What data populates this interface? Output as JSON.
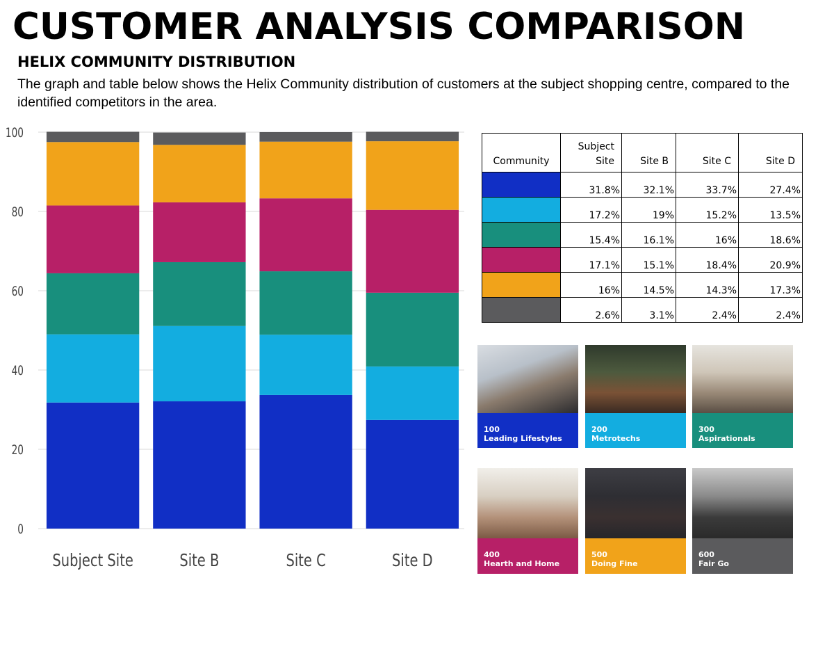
{
  "header": {
    "title": "CUSTOMER ANALYSIS COMPARISON",
    "subtitle": "HELIX COMMUNITY DISTRIBUTION",
    "description": "The graph and table below shows the Helix Community distribution of customers at the subject shopping centre, compared to the identified competitors in the area."
  },
  "colors": {
    "Leading Lifestyles": "#112fc5",
    "Metrotechs": "#13ade0",
    "Aspirationals": "#188f7d",
    "Hearth and Home": "#b72067",
    "Doing Fine": "#f1a31a",
    "Fair Go": "#5b5b5d"
  },
  "chart_data": {
    "type": "bar",
    "stacked": true,
    "categories": [
      "Subject Site",
      "Site B",
      "Site C",
      "Site D"
    ],
    "ylim": [
      0,
      100
    ],
    "yticks": [
      0,
      20,
      40,
      60,
      80,
      100
    ],
    "grid": true,
    "series": [
      {
        "values": [
          31.8,
          32.1,
          33.7,
          27.4
        ]
      },
      {
        "values": [
          17.2,
          19,
          15.2,
          13.5
        ]
      },
      {
        "values": [
          15.4,
          16.1,
          16,
          18.6
        ]
      },
      {
        "values": [
          17.1,
          15.1,
          18.4,
          20.9
        ]
      },
      {
        "values": [
          16,
          14.5,
          14.3,
          17.3
        ]
      },
      {
        "values": [
          2.6,
          3.1,
          2.4,
          2.4
        ]
      }
    ]
  },
  "table": {
    "headers": [
      "Community",
      "Subject\nSite",
      "Site B",
      "Site C",
      "Site D"
    ],
    "rows": [
      {
        "color": "#112fc5",
        "cells": [
          "31.8%",
          "32.1%",
          "33.7%",
          "27.4%"
        ]
      },
      {
        "color": "#13ade0",
        "cells": [
          "17.2%",
          "19%",
          "15.2%",
          "13.5%"
        ]
      },
      {
        "color": "#188f7d",
        "cells": [
          "15.4%",
          "16.1%",
          "16%",
          "18.6%"
        ]
      },
      {
        "color": "#b72067",
        "cells": [
          "17.1%",
          "15.1%",
          "18.4%",
          "20.9%"
        ]
      },
      {
        "color": "#f1a31a",
        "cells": [
          "16%",
          "14.5%",
          "14.3%",
          "17.3%"
        ]
      },
      {
        "color": "#5b5b5d",
        "cells": [
          "2.6%",
          "3.1%",
          "2.4%",
          "2.4%"
        ]
      }
    ]
  },
  "tiles": [
    {
      "code": "100",
      "name": "Leading Lifestyles",
      "color": "#112fc5"
    },
    {
      "code": "200",
      "name": "Metrotechs",
      "color": "#13ade0"
    },
    {
      "code": "300",
      "name": "Aspirationals",
      "color": "#188f7d"
    },
    {
      "code": "400",
      "name": "Hearth and Home",
      "color": "#b72067"
    },
    {
      "code": "500",
      "name": "Doing Fine",
      "color": "#f1a31a"
    },
    {
      "code": "600",
      "name": "Fair Go",
      "color": "#5b5b5d"
    }
  ]
}
